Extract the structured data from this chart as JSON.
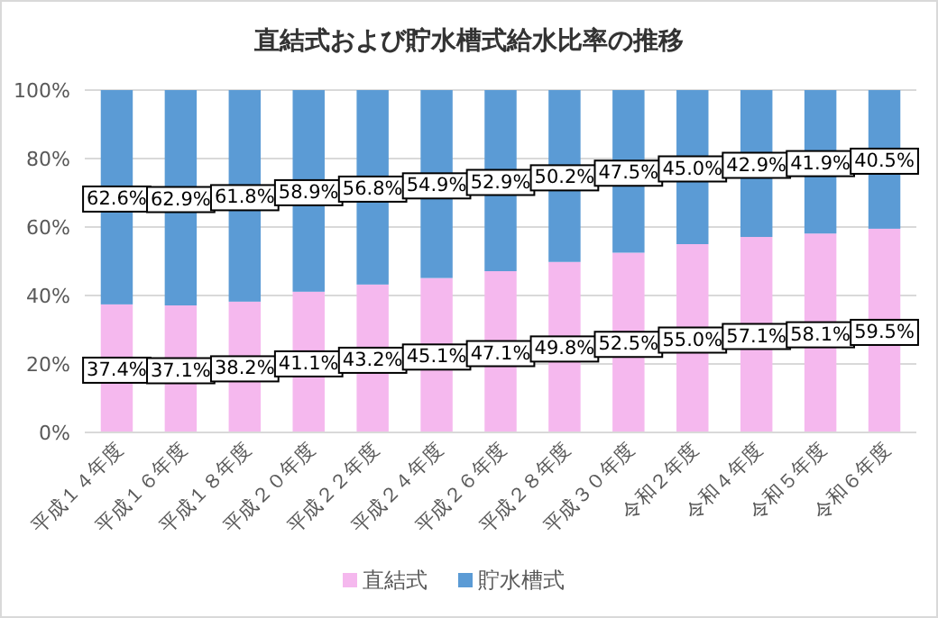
{
  "chart_data": {
    "type": "bar",
    "stacked": true,
    "title": "直結式および貯水槽式給水比率の推移",
    "categories": [
      "平成１４年度",
      "平成１６年度",
      "平成１８年度",
      "平成２０年度",
      "平成２２年度",
      "平成２４年度",
      "平成２６年度",
      "平成２８年度",
      "平成３０年度",
      "令和２年度",
      "令和４年度",
      "令和５年度",
      "令和６年度"
    ],
    "series": [
      {
        "name": "直結式",
        "color": "#f5b8ee",
        "values": [
          37.4,
          37.1,
          38.2,
          41.1,
          43.2,
          45.1,
          47.1,
          49.8,
          52.5,
          55.0,
          57.1,
          58.1,
          59.5
        ],
        "value_labels": [
          "37.4%",
          "37.1%",
          "38.2%",
          "41.1%",
          "43.2%",
          "45.1%",
          "47.1%",
          "49.8%",
          "52.5%",
          "55.0%",
          "57.1%",
          "58.1%",
          "59.5%"
        ]
      },
      {
        "name": "貯水槽式",
        "color": "#5b9bd5",
        "values": [
          62.6,
          62.9,
          61.8,
          58.9,
          56.8,
          54.9,
          52.9,
          50.2,
          47.5,
          45.0,
          42.9,
          41.9,
          40.5
        ],
        "value_labels": [
          "62.6%",
          "62.9%",
          "61.8%",
          "58.9%",
          "56.8%",
          "54.9%",
          "52.9%",
          "50.2%",
          "47.5%",
          "45.0%",
          "42.9%",
          "41.9%",
          "40.5%"
        ]
      }
    ],
    "ylim": [
      0,
      100
    ],
    "yticks": [
      {
        "value": 0,
        "label": "0%"
      },
      {
        "value": 20,
        "label": "20%"
      },
      {
        "value": 40,
        "label": "40%"
      },
      {
        "value": 60,
        "label": "60%"
      },
      {
        "value": 80,
        "label": "80%"
      },
      {
        "value": 100,
        "label": "100%"
      }
    ],
    "grid": "y",
    "legend": "bottom"
  }
}
